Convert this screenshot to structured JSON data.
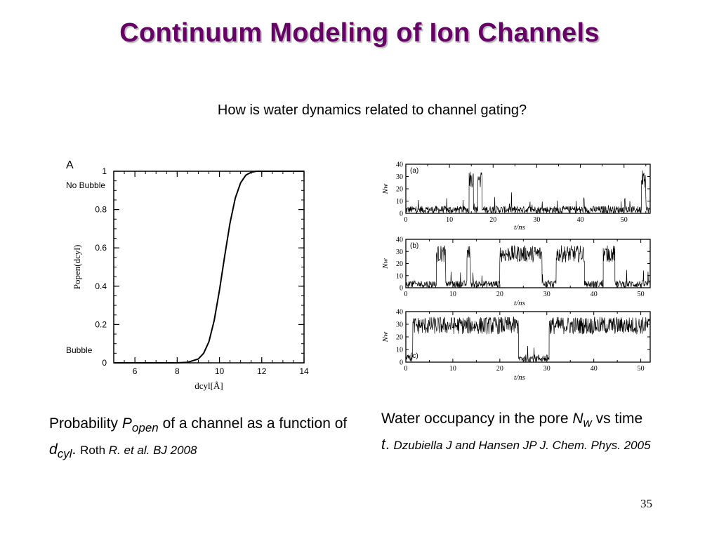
{
  "slide": {
    "title": "Continuum Modeling of Ion Channels",
    "question": "How is water dynamics related to channel gating?",
    "page_number": "35",
    "title_color": "#660066"
  },
  "caption_left": {
    "p1": "Probability ",
    "sym": "P",
    "sub": "open",
    "p2": " of a channel as a function of ",
    "sym2": "d",
    "sub2": "cyl",
    "p3": ". ",
    "author": "Roth ",
    "ref": "R. et al. BJ 2008"
  },
  "caption_right": {
    "p1": "Water occupancy in the pore ",
    "sym": "N",
    "sub": "w",
    "p2": " vs time ",
    "sym2": "t",
    "p3": ". ",
    "ref": "Dzubiella J and Hansen JP J. Chem. Phys. 2005"
  },
  "chart_data": [
    {
      "type": "line",
      "panel_label": "A",
      "xlabel": "dcyl[Å]",
      "ylabel": "Popen(dcyl)",
      "xlim": [
        5,
        14
      ],
      "ylim": [
        0,
        1
      ],
      "xticks": [
        "6",
        "8",
        "10",
        "12",
        "14"
      ],
      "yticks": [
        "0",
        "0.2",
        "0.4",
        "0.6",
        "0.8",
        "1"
      ],
      "annotations": [
        "No Bubble",
        "Bubble"
      ],
      "x": [
        5,
        8,
        8.5,
        9,
        9.25,
        9.5,
        9.75,
        10,
        10.25,
        10.5,
        10.75,
        11,
        11.25,
        11.5,
        11.75,
        12,
        14
      ],
      "y": [
        0,
        0,
        0.003,
        0.02,
        0.05,
        0.11,
        0.22,
        0.38,
        0.56,
        0.73,
        0.86,
        0.94,
        0.98,
        0.995,
        1,
        1,
        1
      ]
    },
    {
      "type": "line",
      "panel_label": "(a)",
      "xlabel": "t/ns",
      "ylabel": "Nw",
      "xlim": [
        0,
        56
      ],
      "ylim": [
        0,
        40
      ],
      "xticks": [
        "0",
        "10",
        "20",
        "30",
        "40",
        "50"
      ],
      "yticks": [
        "0",
        "10",
        "20",
        "30",
        "40"
      ],
      "levels": {
        "low": 3,
        "high": 28
      },
      "segments": [
        [
          0,
          14.5,
          "low"
        ],
        [
          14.5,
          15.5,
          "high"
        ],
        [
          15.5,
          16.5,
          "low"
        ],
        [
          16.5,
          17.5,
          "high"
        ],
        [
          17.5,
          54,
          "low"
        ],
        [
          54,
          55,
          "high"
        ],
        [
          55,
          56,
          "low"
        ]
      ]
    },
    {
      "type": "line",
      "panel_label": "(b)",
      "xlabel": "t/ns",
      "ylabel": "Nw",
      "xlim": [
        0,
        52
      ],
      "ylim": [
        0,
        40
      ],
      "xticks": [
        "0",
        "10",
        "20",
        "30",
        "40",
        "50"
      ],
      "yticks": [
        "0",
        "10",
        "20",
        "30",
        "40"
      ],
      "levels": {
        "low": 3,
        "high": 28
      },
      "segments": [
        [
          0,
          6.5,
          "low"
        ],
        [
          6.5,
          8.5,
          "high"
        ],
        [
          8.5,
          13,
          "low"
        ],
        [
          13,
          13.8,
          "high"
        ],
        [
          13.8,
          20,
          "low"
        ],
        [
          20,
          29,
          "high"
        ],
        [
          29,
          32,
          "low"
        ],
        [
          32,
          38,
          "high"
        ],
        [
          38,
          42,
          "low"
        ],
        [
          42,
          44.5,
          "high"
        ],
        [
          44.5,
          52,
          "low"
        ]
      ]
    },
    {
      "type": "line",
      "panel_label": "(c)",
      "xlabel": "t/ns",
      "ylabel": "Nw",
      "xlim": [
        0,
        52
      ],
      "ylim": [
        0,
        40
      ],
      "xticks": [
        "0",
        "10",
        "20",
        "30",
        "40",
        "50"
      ],
      "yticks": [
        "0",
        "10",
        "20",
        "30",
        "40"
      ],
      "levels": {
        "low": 3,
        "high": 29
      },
      "segments": [
        [
          0,
          1.5,
          "low"
        ],
        [
          1.5,
          24,
          "high"
        ],
        [
          24,
          30.5,
          "low"
        ],
        [
          30.5,
          52,
          "high"
        ]
      ]
    }
  ]
}
